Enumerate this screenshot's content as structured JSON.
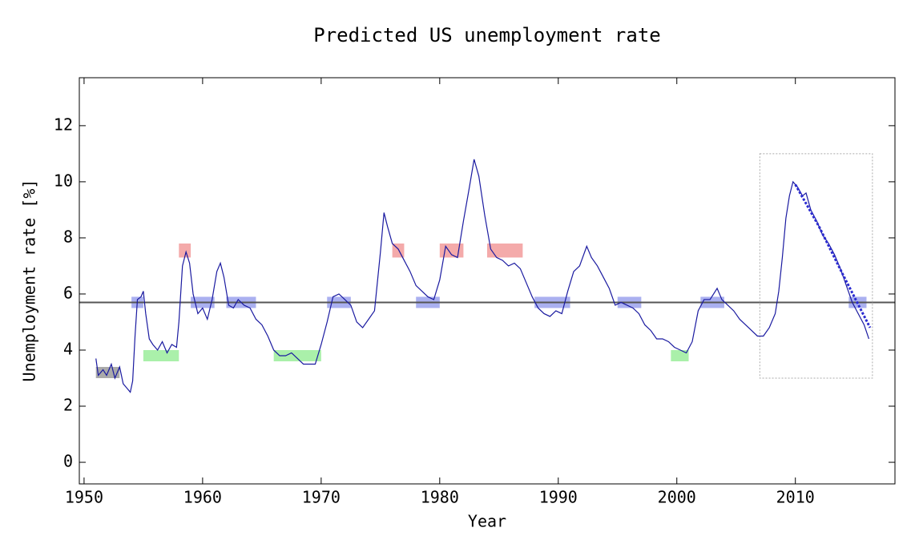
{
  "chart_data": {
    "type": "line",
    "title": "Predicted US unemployment rate",
    "x_label": "Year",
    "y_label": "Unemployment rate [%]",
    "xlim": [
      1949.6,
      2018.4
    ],
    "ylim": [
      -0.77,
      13.71
    ],
    "xticks": [
      1950,
      1960,
      1970,
      1980,
      1990,
      2000,
      2010
    ],
    "yticks": [
      0,
      2,
      4,
      6,
      8,
      10,
      12
    ],
    "hline": {
      "value": 5.7,
      "color": "#555555"
    },
    "series": [
      {
        "color": "#1a1aa0",
        "dash": false,
        "x": [
          1951.0,
          1951.2,
          1951.6,
          1951.9,
          1952.3,
          1952.6,
          1953.0,
          1953.3,
          1953.7,
          1953.9,
          1954.1,
          1954.3,
          1954.5,
          1954.8,
          1955.0,
          1955.2,
          1955.5,
          1955.8,
          1956.2,
          1956.6,
          1957.0,
          1957.4,
          1957.8,
          1958.0,
          1958.3,
          1958.6,
          1958.9,
          1959.2,
          1959.6,
          1960.0,
          1960.4,
          1960.8,
          1961.2,
          1961.5,
          1961.8,
          1962.2,
          1962.6,
          1963.0,
          1963.5,
          1964.0,
          1964.5,
          1965.0,
          1965.5,
          1966.0,
          1966.5,
          1967.0,
          1967.5,
          1968.0,
          1968.5,
          1969.0,
          1969.5,
          1970.0,
          1970.5,
          1971.0,
          1971.5,
          1972.0,
          1972.5,
          1973.0,
          1973.5,
          1974.0,
          1974.5,
          1975.0,
          1975.3,
          1975.6,
          1976.0,
          1976.5,
          1977.0,
          1977.5,
          1978.0,
          1978.5,
          1979.0,
          1979.5,
          1980.0,
          1980.5,
          1981.0,
          1981.5,
          1982.0,
          1982.5,
          1982.9,
          1983.3,
          1983.8,
          1984.3,
          1984.8,
          1985.3,
          1985.8,
          1986.3,
          1986.8,
          1987.3,
          1987.8,
          1988.3,
          1988.8,
          1989.3,
          1989.8,
          1990.3,
          1990.8,
          1991.3,
          1991.8,
          1992.4,
          1992.8,
          1993.3,
          1993.8,
          1994.3,
          1994.8,
          1995.3,
          1995.8,
          1996.3,
          1996.8,
          1997.3,
          1997.8,
          1998.3,
          1998.8,
          1999.3,
          1999.8,
          2000.3,
          2000.8,
          2001.3,
          2001.8,
          2002.3,
          2002.8,
          2003.4,
          2003.8,
          2004.3,
          2004.8,
          2005.3,
          2005.8,
          2006.3,
          2006.8,
          2007.3,
          2007.8,
          2008.3,
          2008.6,
          2008.9,
          2009.2,
          2009.5,
          2009.8,
          2010.2,
          2010.6,
          2010.9,
          2011.3,
          2011.8,
          2012.3,
          2012.8,
          2013.3,
          2013.8,
          2014.3,
          2014.8,
          2015.3,
          2015.8,
          2016.2
        ],
        "values": [
          3.7,
          3.1,
          3.3,
          3.1,
          3.5,
          3.0,
          3.4,
          2.8,
          2.6,
          2.5,
          2.9,
          4.5,
          5.8,
          5.9,
          6.1,
          5.3,
          4.4,
          4.2,
          4.0,
          4.3,
          3.9,
          4.2,
          4.1,
          5.0,
          7.0,
          7.5,
          7.1,
          6.0,
          5.3,
          5.5,
          5.1,
          5.8,
          6.8,
          7.1,
          6.6,
          5.6,
          5.5,
          5.8,
          5.6,
          5.5,
          5.1,
          4.9,
          4.5,
          4.0,
          3.8,
          3.8,
          3.9,
          3.7,
          3.5,
          3.5,
          3.5,
          4.2,
          5.0,
          5.9,
          6.0,
          5.8,
          5.6,
          5.0,
          4.8,
          5.1,
          5.4,
          7.5,
          8.9,
          8.4,
          7.8,
          7.6,
          7.2,
          6.8,
          6.3,
          6.1,
          5.9,
          5.8,
          6.5,
          7.7,
          7.4,
          7.3,
          8.6,
          9.8,
          10.8,
          10.2,
          8.8,
          7.6,
          7.3,
          7.2,
          7.0,
          7.1,
          6.9,
          6.4,
          5.9,
          5.5,
          5.3,
          5.2,
          5.4,
          5.3,
          6.1,
          6.8,
          7.0,
          7.7,
          7.3,
          7.0,
          6.6,
          6.2,
          5.6,
          5.7,
          5.6,
          5.5,
          5.3,
          4.9,
          4.7,
          4.4,
          4.4,
          4.3,
          4.1,
          4.0,
          3.9,
          4.3,
          5.4,
          5.8,
          5.8,
          6.2,
          5.8,
          5.6,
          5.4,
          5.1,
          4.9,
          4.7,
          4.5,
          4.5,
          4.8,
          5.3,
          6.1,
          7.3,
          8.7,
          9.5,
          10.0,
          9.8,
          9.5,
          9.6,
          9.0,
          8.6,
          8.1,
          7.8,
          7.4,
          6.9,
          6.3,
          5.7,
          5.3,
          4.9,
          4.4
        ]
      },
      {
        "color": "#2a2ad0",
        "dash": true,
        "x": [
          2010.0,
          2012.0,
          2014.0,
          2016.3
        ],
        "values": [
          9.9,
          8.4,
          6.7,
          4.8
        ]
      }
    ],
    "regions": [
      {
        "x": [
          1951.0,
          1953.0
        ],
        "y": [
          3.0,
          3.4
        ],
        "color": "#aaaaaa"
      },
      {
        "x": [
          1954.0,
          1955.0
        ],
        "y": [
          5.5,
          5.9
        ],
        "color": "#aab0f0"
      },
      {
        "x": [
          1955.0,
          1958.0
        ],
        "y": [
          3.6,
          4.0
        ],
        "color": "#aaf0aa"
      },
      {
        "x": [
          1958.0,
          1959.0
        ],
        "y": [
          7.3,
          7.8
        ],
        "color": "#f4aaaa"
      },
      {
        "x": [
          1959.0,
          1961.0
        ],
        "y": [
          5.5,
          5.9
        ],
        "color": "#aab0f0"
      },
      {
        "x": [
          1962.0,
          1964.5
        ],
        "y": [
          5.5,
          5.9
        ],
        "color": "#aab0f0"
      },
      {
        "x": [
          1966.0,
          1970.0
        ],
        "y": [
          3.6,
          4.0
        ],
        "color": "#aaf0aa"
      },
      {
        "x": [
          1970.5,
          1972.5
        ],
        "y": [
          5.5,
          5.9
        ],
        "color": "#aab0f0"
      },
      {
        "x": [
          1976.0,
          1977.0
        ],
        "y": [
          7.3,
          7.8
        ],
        "color": "#f4aaaa"
      },
      {
        "x": [
          1978.0,
          1980.0
        ],
        "y": [
          5.5,
          5.9
        ],
        "color": "#aab0f0"
      },
      {
        "x": [
          1980.0,
          1982.0
        ],
        "y": [
          7.3,
          7.8
        ],
        "color": "#f4aaaa"
      },
      {
        "x": [
          1984.0,
          1987.0
        ],
        "y": [
          7.3,
          7.8
        ],
        "color": "#f4aaaa"
      },
      {
        "x": [
          1988.0,
          1991.0
        ],
        "y": [
          5.5,
          5.9
        ],
        "color": "#aab0f0"
      },
      {
        "x": [
          1995.0,
          1997.0
        ],
        "y": [
          5.5,
          5.9
        ],
        "color": "#aab0f0"
      },
      {
        "x": [
          1999.5,
          2001.0
        ],
        "y": [
          3.6,
          4.0
        ],
        "color": "#aaf0aa"
      },
      {
        "x": [
          2002.0,
          2004.0
        ],
        "y": [
          5.5,
          5.9
        ],
        "color": "#aab0f0"
      },
      {
        "x": [
          2014.5,
          2016.0
        ],
        "y": [
          5.5,
          5.9
        ],
        "color": "#aab0f0"
      }
    ],
    "window": {
      "x": [
        2007.0,
        2016.5
      ],
      "y": [
        3.0,
        11.0
      ],
      "color": "#aaaaaa"
    }
  }
}
